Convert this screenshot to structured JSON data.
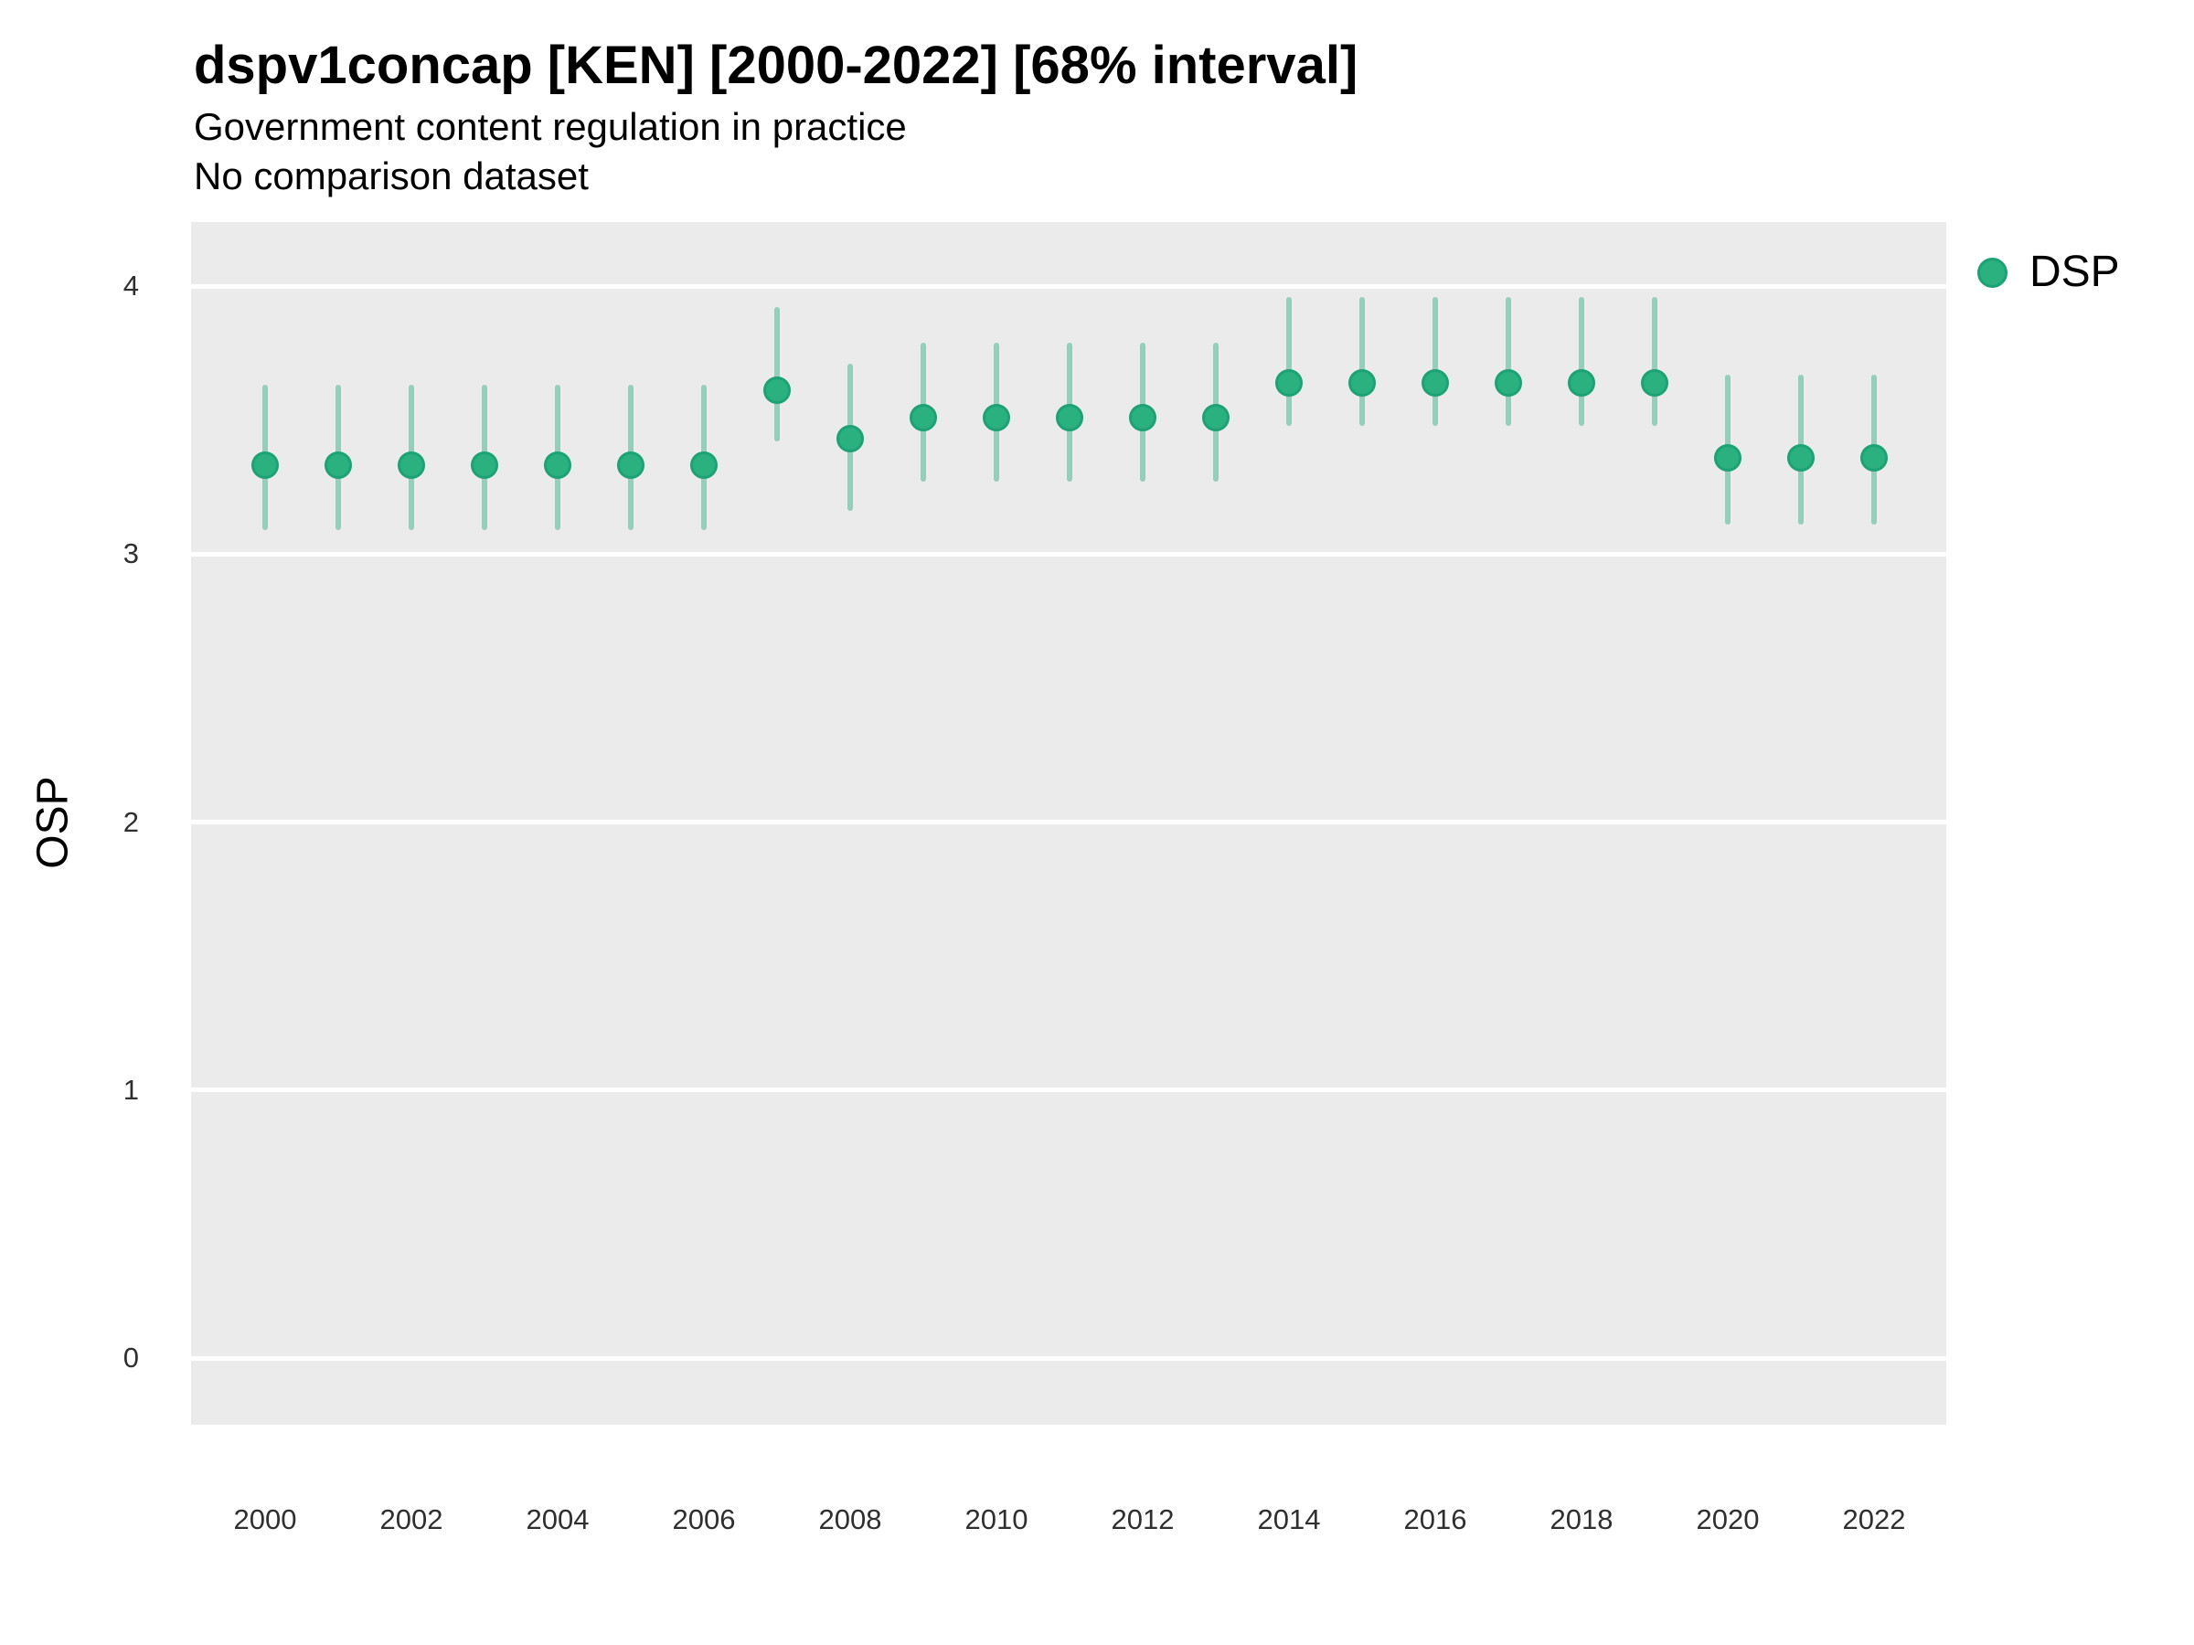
{
  "title": "dspv1concap [KEN] [2000-2022] [68% interval]",
  "subtitle_line1": "Government content regulation in practice",
  "subtitle_line2": "No comparison dataset",
  "y_axis": {
    "label": "OSP",
    "ticks": [
      "0",
      "1",
      "2",
      "3",
      "4"
    ]
  },
  "x_axis": {
    "ticks": [
      "2000",
      "2002",
      "2004",
      "2006",
      "2008",
      "2010",
      "2012",
      "2014",
      "2016",
      "2018",
      "2020",
      "2022"
    ]
  },
  "legend": {
    "items": [
      {
        "label": "DSP",
        "color": "#2bb080"
      }
    ]
  },
  "colors": {
    "point_fill": "#2bb080",
    "point_border": "#1ca274",
    "interval_line": "rgba(43, 172, 128, 0.45)",
    "panel_background": "#ebebeb",
    "gridline": "#ffffff"
  },
  "chart_data": {
    "type": "scatter",
    "title": "dspv1concap [KEN] [2000-2022] [68% interval]",
    "subtitle": "Government content regulation in practice",
    "note": "No comparison dataset",
    "xlabel": "",
    "ylabel": "OSP",
    "ylim": [
      -0.25,
      4.25
    ],
    "xlim": [
      1999,
      2023
    ],
    "y_gridlines": [
      0,
      1,
      2,
      3,
      4
    ],
    "x_tick_years": [
      2000,
      2002,
      2004,
      2006,
      2008,
      2010,
      2012,
      2014,
      2016,
      2018,
      2020,
      2022
    ],
    "interval": "68%",
    "legend_position": "right-top",
    "grid": "horizontal-only",
    "series": [
      {
        "name": "DSP",
        "points": [
          {
            "year": 2000,
            "est": 3.33,
            "lo": 3.1,
            "hi": 3.62
          },
          {
            "year": 2001,
            "est": 3.33,
            "lo": 3.1,
            "hi": 3.62
          },
          {
            "year": 2002,
            "est": 3.33,
            "lo": 3.1,
            "hi": 3.62
          },
          {
            "year": 2003,
            "est": 3.33,
            "lo": 3.1,
            "hi": 3.62
          },
          {
            "year": 2004,
            "est": 3.33,
            "lo": 3.1,
            "hi": 3.62
          },
          {
            "year": 2005,
            "est": 3.33,
            "lo": 3.1,
            "hi": 3.62
          },
          {
            "year": 2006,
            "est": 3.33,
            "lo": 3.1,
            "hi": 3.62
          },
          {
            "year": 2007,
            "est": 3.61,
            "lo": 3.43,
            "hi": 3.91
          },
          {
            "year": 2008,
            "est": 3.43,
            "lo": 3.17,
            "hi": 3.7
          },
          {
            "year": 2009,
            "est": 3.51,
            "lo": 3.28,
            "hi": 3.78
          },
          {
            "year": 2010,
            "est": 3.51,
            "lo": 3.28,
            "hi": 3.78
          },
          {
            "year": 2011,
            "est": 3.51,
            "lo": 3.28,
            "hi": 3.78
          },
          {
            "year": 2012,
            "est": 3.51,
            "lo": 3.28,
            "hi": 3.78
          },
          {
            "year": 2013,
            "est": 3.51,
            "lo": 3.28,
            "hi": 3.78
          },
          {
            "year": 2014,
            "est": 3.64,
            "lo": 3.49,
            "hi": 3.95
          },
          {
            "year": 2015,
            "est": 3.64,
            "lo": 3.49,
            "hi": 3.95
          },
          {
            "year": 2016,
            "est": 3.64,
            "lo": 3.49,
            "hi": 3.95
          },
          {
            "year": 2017,
            "est": 3.64,
            "lo": 3.49,
            "hi": 3.95
          },
          {
            "year": 2018,
            "est": 3.64,
            "lo": 3.49,
            "hi": 3.95
          },
          {
            "year": 2019,
            "est": 3.64,
            "lo": 3.49,
            "hi": 3.95
          },
          {
            "year": 2020,
            "est": 3.36,
            "lo": 3.12,
            "hi": 3.66
          },
          {
            "year": 2021,
            "est": 3.36,
            "lo": 3.12,
            "hi": 3.66
          },
          {
            "year": 2022,
            "est": 3.36,
            "lo": 3.12,
            "hi": 3.66
          }
        ]
      }
    ]
  }
}
